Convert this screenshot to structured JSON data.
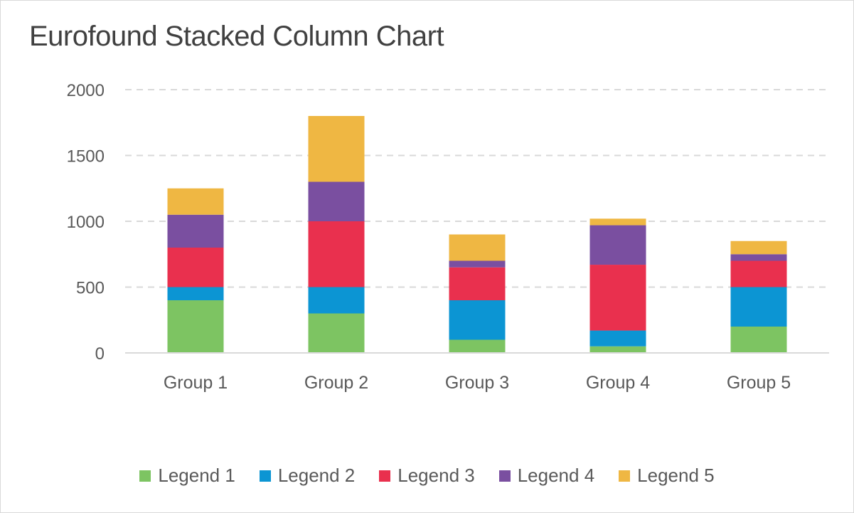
{
  "chart_data": {
    "type": "bar",
    "stacked": true,
    "title": "Eurofound Stacked Column Chart",
    "categories": [
      "Group 1",
      "Group 2",
      "Group 3",
      "Group 4",
      "Group 5"
    ],
    "ylim": [
      0,
      2000
    ],
    "yticks": [
      "0",
      "500",
      "1000",
      "1500",
      "2000"
    ],
    "grid": true,
    "legend_position": "bottom",
    "series": [
      {
        "name": "Legend 1",
        "color": "#7dc462",
        "values": [
          400,
          300,
          100,
          50,
          200
        ]
      },
      {
        "name": "Legend 2",
        "color": "#0c95d3",
        "values": [
          100,
          200,
          300,
          120,
          300
        ]
      },
      {
        "name": "Legend 3",
        "color": "#e9304e",
        "values": [
          300,
          500,
          250,
          500,
          200
        ]
      },
      {
        "name": "Legend 4",
        "color": "#7a4fa0",
        "values": [
          250,
          300,
          50,
          300,
          50
        ]
      },
      {
        "name": "Legend 5",
        "color": "#efb743",
        "values": [
          200,
          500,
          200,
          50,
          100
        ]
      }
    ]
  }
}
